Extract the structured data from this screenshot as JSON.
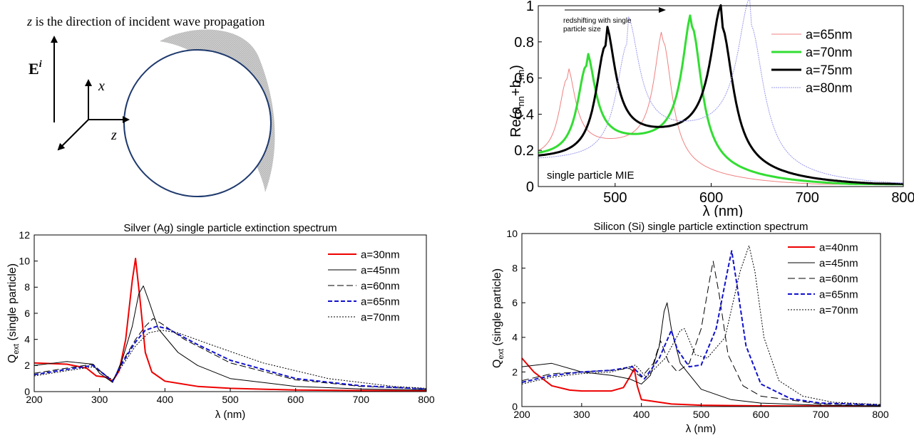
{
  "schematic": {
    "caption_var": "z",
    "caption_rest": " is the direction of incident wave propagation",
    "field_label": "E",
    "field_sup": "i",
    "x_label": "x",
    "z_label": "z"
  },
  "chart_data": [
    {
      "id": "mie",
      "type": "line",
      "ylabel_main": "Re(a",
      "ylabel_sub1": "nn",
      "ylabel_mid": "+b",
      "ylabel_sub2": "nn",
      "ylabel_end": ")",
      "xlabel": "λ (nm)",
      "xlim": [
        420,
        800
      ],
      "ylim": [
        0,
        1
      ],
      "xticks": [
        "500",
        "600",
        "700",
        "800"
      ],
      "yticks": [
        "0",
        "0.2",
        "0.4",
        "0.6",
        "0.8",
        "1"
      ],
      "annotation": "single particle MIE",
      "arrow_text_1": "redshifting with single",
      "arrow_text_2": "particle size",
      "grid": false,
      "legend_placement": "top-right",
      "series": [
        {
          "name": "a=65nm",
          "color": "#f08080",
          "width": 1,
          "dash": "",
          "peaks": [
            [
              450,
              0.44,
              10
            ],
            [
              550,
              0.65,
              11
            ]
          ],
          "base": 0.15,
          "mid": 0.22
        },
        {
          "name": "a=70nm",
          "color": "#33dd33",
          "width": 3,
          "dash": "",
          "peaks": [
            [
              470,
              0.5,
              11
            ],
            [
              580,
              0.72,
              12
            ]
          ],
          "base": 0.16,
          "mid": 0.24
        },
        {
          "name": "a=75nm",
          "color": "#000000",
          "width": 3,
          "dash": "",
          "peaks": [
            [
              490,
              0.62,
              12
            ],
            [
              611,
              0.73,
              14
            ]
          ],
          "base": 0.15,
          "mid": 0.27
        },
        {
          "name": "a=80nm",
          "color": "#9999ee",
          "width": 1,
          "dash": "2,1",
          "peaks": [
            [
              513,
              0.64,
              14
            ],
            [
              641,
              0.75,
              16
            ]
          ],
          "base": 0.14,
          "mid": 0.29
        }
      ]
    },
    {
      "id": "silver",
      "type": "line",
      "title": "Silver (Ag) single particle extinction spectrum",
      "xlabel": "λ (nm)",
      "ylabel_main": "Q",
      "ylabel_sub": "ext",
      "ylabel_end": " (single particle)",
      "xlim": [
        200,
        800
      ],
      "ylim": [
        0,
        12
      ],
      "xticks": [
        "200",
        "300",
        "400",
        "500",
        "600",
        "700",
        "800"
      ],
      "yticks": [
        "0",
        "2",
        "4",
        "6",
        "8",
        "10",
        "12"
      ],
      "grid": false,
      "legend_placement": "top-right",
      "series": [
        {
          "name": "a=30nm",
          "color": "#ee0000",
          "width": 2,
          "dash": "",
          "points": [
            [
              200,
              2.2
            ],
            [
              250,
              2.1
            ],
            [
              280,
              1.8
            ],
            [
              295,
              1.2
            ],
            [
              310,
              1.1
            ],
            [
              320,
              0.8
            ],
            [
              330,
              1.6
            ],
            [
              340,
              4.0
            ],
            [
              350,
              8.5
            ],
            [
              355,
              10.2
            ],
            [
              362,
              7.0
            ],
            [
              370,
              3.0
            ],
            [
              380,
              1.5
            ],
            [
              400,
              0.8
            ],
            [
              450,
              0.4
            ],
            [
              500,
              0.25
            ],
            [
              600,
              0.12
            ],
            [
              700,
              0.08
            ],
            [
              800,
              0.06
            ]
          ]
        },
        {
          "name": "a=45nm",
          "color": "#000000",
          "width": 1,
          "dash": "",
          "points": [
            [
              200,
              2.0
            ],
            [
              250,
              2.3
            ],
            [
              290,
              2.1
            ],
            [
              300,
              1.4
            ],
            [
              320,
              0.7
            ],
            [
              335,
              2.5
            ],
            [
              350,
              5.0
            ],
            [
              360,
              7.5
            ],
            [
              367,
              8.1
            ],
            [
              375,
              7.0
            ],
            [
              390,
              4.8
            ],
            [
              420,
              3.0
            ],
            [
              450,
              2.0
            ],
            [
              500,
              1.0
            ],
            [
              600,
              0.4
            ],
            [
              700,
              0.2
            ],
            [
              800,
              0.12
            ]
          ]
        },
        {
          "name": "a=60nm",
          "color": "#000000",
          "width": 1,
          "dash": "9,4",
          "points": [
            [
              200,
              1.4
            ],
            [
              250,
              1.8
            ],
            [
              290,
              2.1
            ],
            [
              305,
              1.4
            ],
            [
              320,
              0.8
            ],
            [
              335,
              2.3
            ],
            [
              355,
              4.0
            ],
            [
              370,
              5.0
            ],
            [
              382,
              5.6
            ],
            [
              395,
              5.2
            ],
            [
              430,
              4.0
            ],
            [
              500,
              2.2
            ],
            [
              600,
              0.9
            ],
            [
              700,
              0.4
            ],
            [
              800,
              0.2
            ]
          ]
        },
        {
          "name": "a=65nm",
          "color": "#1111cc",
          "width": 2,
          "dash": "6,3",
          "points": [
            [
              200,
              1.3
            ],
            [
              250,
              1.7
            ],
            [
              290,
              2.0
            ],
            [
              305,
              1.4
            ],
            [
              320,
              0.8
            ],
            [
              335,
              2.2
            ],
            [
              355,
              3.8
            ],
            [
              370,
              4.7
            ],
            [
              388,
              5.0
            ],
            [
              405,
              4.8
            ],
            [
              450,
              3.6
            ],
            [
              500,
              2.4
            ],
            [
              600,
              1.0
            ],
            [
              700,
              0.45
            ],
            [
              800,
              0.2
            ]
          ]
        },
        {
          "name": "a=70nm",
          "color": "#000000",
          "width": 1,
          "dash": "2,2",
          "points": [
            [
              200,
              1.2
            ],
            [
              250,
              1.6
            ],
            [
              290,
              1.9
            ],
            [
              305,
              1.4
            ],
            [
              320,
              0.9
            ],
            [
              335,
              2.0
            ],
            [
              355,
              3.5
            ],
            [
              375,
              4.5
            ],
            [
              395,
              4.7
            ],
            [
              420,
              4.5
            ],
            [
              470,
              3.6
            ],
            [
              550,
              2.2
            ],
            [
              650,
              1.0
            ],
            [
              750,
              0.4
            ],
            [
              800,
              0.25
            ]
          ]
        }
      ]
    },
    {
      "id": "silicon",
      "type": "line",
      "title": "Silicon (Si) single particle extinction spectrum",
      "xlabel": "λ (nm)",
      "ylabel_main": "Q",
      "ylabel_sub": "ext",
      "ylabel_end": " (single particle)",
      "xlim": [
        200,
        800
      ],
      "ylim": [
        0,
        10
      ],
      "xticks": [
        "200",
        "300",
        "400",
        "500",
        "600",
        "700",
        "800"
      ],
      "yticks": [
        "0",
        "2",
        "4",
        "6",
        "8",
        "10"
      ],
      "grid": false,
      "legend_placement": "top-right",
      "series": [
        {
          "name": "a=40nm",
          "color": "#ee0000",
          "width": 2,
          "dash": "",
          "points": [
            [
              200,
              2.8
            ],
            [
              220,
              2.0
            ],
            [
              250,
              1.2
            ],
            [
              280,
              0.95
            ],
            [
              300,
              0.9
            ],
            [
              350,
              0.9
            ],
            [
              370,
              1.1
            ],
            [
              382,
              1.8
            ],
            [
              388,
              2.2
            ],
            [
              393,
              1.2
            ],
            [
              400,
              0.4
            ],
            [
              450,
              0.15
            ],
            [
              500,
              0.08
            ],
            [
              600,
              0.04
            ],
            [
              800,
              0.02
            ]
          ]
        },
        {
          "name": "a=45nm",
          "color": "#000000",
          "width": 1,
          "dash": "",
          "points": [
            [
              200,
              2.3
            ],
            [
              250,
              2.5
            ],
            [
              300,
              2.0
            ],
            [
              350,
              1.8
            ],
            [
              380,
              1.6
            ],
            [
              400,
              1.3
            ],
            [
              415,
              1.8
            ],
            [
              430,
              3.5
            ],
            [
              438,
              5.5
            ],
            [
              443,
              6.0
            ],
            [
              450,
              4.5
            ],
            [
              465,
              2.5
            ],
            [
              500,
              1.0
            ],
            [
              550,
              0.4
            ],
            [
              600,
              0.2
            ],
            [
              700,
              0.08
            ],
            [
              800,
              0.04
            ]
          ]
        },
        {
          "name": "a=60nm",
          "color": "#000000",
          "width": 1,
          "dash": "10,5",
          "points": [
            [
              200,
              1.5
            ],
            [
              250,
              1.9
            ],
            [
              300,
              2.0
            ],
            [
              350,
              2.1
            ],
            [
              380,
              2.2
            ],
            [
              400,
              1.7
            ],
            [
              420,
              2.5
            ],
            [
              432,
              3.8
            ],
            [
              445,
              2.6
            ],
            [
              460,
              2.0
            ],
            [
              480,
              2.5
            ],
            [
              500,
              4.5
            ],
            [
              515,
              7.5
            ],
            [
              520,
              8.4
            ],
            [
              530,
              6.5
            ],
            [
              545,
              3.0
            ],
            [
              570,
              1.2
            ],
            [
              600,
              0.6
            ],
            [
              700,
              0.15
            ],
            [
              800,
              0.08
            ]
          ]
        },
        {
          "name": "a=65nm",
          "color": "#1111cc",
          "width": 2,
          "dash": "6,3",
          "points": [
            [
              200,
              1.4
            ],
            [
              250,
              1.8
            ],
            [
              300,
              2.0
            ],
            [
              350,
              2.1
            ],
            [
              385,
              2.3
            ],
            [
              405,
              1.6
            ],
            [
              430,
              2.8
            ],
            [
              450,
              4.4
            ],
            [
              460,
              3.3
            ],
            [
              480,
              2.3
            ],
            [
              500,
              2.4
            ],
            [
              525,
              4.5
            ],
            [
              545,
              8.0
            ],
            [
              551,
              9.0
            ],
            [
              560,
              7.0
            ],
            [
              575,
              3.5
            ],
            [
              600,
              1.3
            ],
            [
              650,
              0.45
            ],
            [
              700,
              0.2
            ],
            [
              800,
              0.1
            ]
          ]
        },
        {
          "name": "a=70nm",
          "color": "#000000",
          "width": 1,
          "dash": "2,2",
          "points": [
            [
              200,
              1.3
            ],
            [
              250,
              1.7
            ],
            [
              300,
              1.9
            ],
            [
              350,
              2.0
            ],
            [
              390,
              2.4
            ],
            [
              408,
              1.7
            ],
            [
              440,
              2.8
            ],
            [
              465,
              4.4
            ],
            [
              472,
              4.5
            ],
            [
              490,
              3.0
            ],
            [
              510,
              2.8
            ],
            [
              540,
              4.0
            ],
            [
              565,
              7.8
            ],
            [
              580,
              9.3
            ],
            [
              590,
              7.8
            ],
            [
              605,
              4.0
            ],
            [
              630,
              1.5
            ],
            [
              670,
              0.6
            ],
            [
              720,
              0.25
            ],
            [
              800,
              0.12
            ]
          ]
        }
      ]
    }
  ]
}
